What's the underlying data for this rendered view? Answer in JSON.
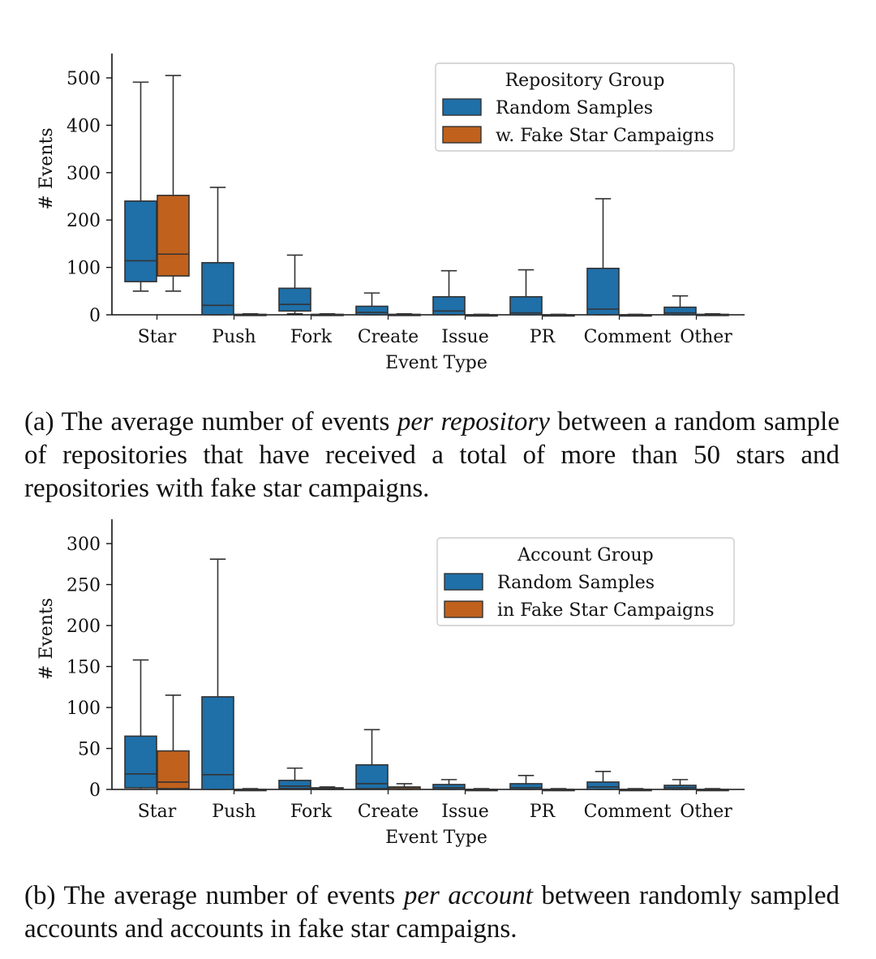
{
  "chart_data": [
    {
      "type": "box",
      "xlabel": "Event Type",
      "ylabel": "# Events",
      "ylim": [
        0,
        520
      ],
      "yticks": [
        0,
        100,
        200,
        300,
        400,
        500
      ],
      "categories": [
        "Star",
        "Push",
        "Fork",
        "Create",
        "Issue",
        "PR",
        "Comment",
        "Other"
      ],
      "legend": {
        "title": "Repository Group",
        "placement": "top-right",
        "entries": [
          "Random Samples",
          "w. Fake Star Campaigns"
        ]
      },
      "series": [
        {
          "name": "Random Samples",
          "color": "#1f6fa8",
          "boxes": [
            {
              "low": 50,
              "q1": 70,
              "median": 114,
              "q3": 240,
              "high": 491
            },
            {
              "low": 0,
              "q1": 0,
              "median": 20,
              "q3": 110,
              "high": 269
            },
            {
              "low": 2,
              "q1": 8,
              "median": 22,
              "q3": 56,
              "high": 126
            },
            {
              "low": 0,
              "q1": 0,
              "median": 5,
              "q3": 18,
              "high": 46
            },
            {
              "low": 0,
              "q1": 0,
              "median": 8,
              "q3": 38,
              "high": 93
            },
            {
              "low": 0,
              "q1": 0,
              "median": 4,
              "q3": 38,
              "high": 95
            },
            {
              "low": 0,
              "q1": 0,
              "median": 12,
              "q3": 98,
              "high": 245
            },
            {
              "low": 0,
              "q1": 0,
              "median": 4,
              "q3": 16,
              "high": 40
            }
          ]
        },
        {
          "name": "w. Fake Star Campaigns",
          "color": "#c0611d",
          "boxes": [
            {
              "low": 50,
              "q1": 82,
              "median": 128,
              "q3": 252,
              "high": 505
            },
            {
              "low": 0,
              "q1": 0,
              "median": 0,
              "q3": 1,
              "high": 2
            },
            {
              "low": 0,
              "q1": 0,
              "median": 0,
              "q3": 1,
              "high": 2
            },
            {
              "low": 0,
              "q1": 0,
              "median": 0,
              "q3": 1,
              "high": 2
            },
            {
              "low": 0,
              "q1": 0,
              "median": 0,
              "q3": 0,
              "high": 1
            },
            {
              "low": 0,
              "q1": 0,
              "median": 0,
              "q3": 0,
              "high": 1
            },
            {
              "low": 0,
              "q1": 0,
              "median": 0,
              "q3": 0,
              "high": 1
            },
            {
              "low": 0,
              "q1": 0,
              "median": 0,
              "q3": 1,
              "high": 2
            }
          ]
        }
      ]
    },
    {
      "type": "box",
      "xlabel": "Event Type",
      "ylabel": "# Events",
      "ylim": [
        0,
        300
      ],
      "yticks": [
        0,
        50,
        100,
        150,
        200,
        250,
        300
      ],
      "categories": [
        "Star",
        "Push",
        "Fork",
        "Create",
        "Issue",
        "PR",
        "Comment",
        "Other"
      ],
      "legend": {
        "title": "Account Group",
        "placement": "top-right",
        "entries": [
          "Random Samples",
          "in Fake Star Campaigns"
        ]
      },
      "series": [
        {
          "name": "Random Samples",
          "color": "#1f6fa8",
          "boxes": [
            {
              "low": 0,
              "q1": 2,
              "median": 19,
              "q3": 65,
              "high": 158
            },
            {
              "low": 0,
              "q1": 0,
              "median": 18,
              "q3": 113,
              "high": 281
            },
            {
              "low": 0,
              "q1": 1,
              "median": 4,
              "q3": 11,
              "high": 26
            },
            {
              "low": 0,
              "q1": 1,
              "median": 7,
              "q3": 30,
              "high": 73
            },
            {
              "low": 0,
              "q1": 0,
              "median": 2,
              "q3": 6,
              "high": 12
            },
            {
              "low": 0,
              "q1": 0,
              "median": 2,
              "q3": 7,
              "high": 17
            },
            {
              "low": 0,
              "q1": 0,
              "median": 3,
              "q3": 9,
              "high": 22
            },
            {
              "low": 0,
              "q1": 0,
              "median": 2,
              "q3": 5,
              "high": 12
            }
          ]
        },
        {
          "name": "in Fake Star Campaigns",
          "color": "#c0611d",
          "boxes": [
            {
              "low": 0,
              "q1": 1,
              "median": 9,
              "q3": 47,
              "high": 115
            },
            {
              "low": 0,
              "q1": 0,
              "median": 0,
              "q3": 0,
              "high": 1
            },
            {
              "low": 0,
              "q1": 0,
              "median": 1,
              "q3": 2,
              "high": 3
            },
            {
              "low": 0,
              "q1": 0,
              "median": 2,
              "q3": 3,
              "high": 7
            },
            {
              "low": 0,
              "q1": 0,
              "median": 0,
              "q3": 0,
              "high": 1
            },
            {
              "low": 0,
              "q1": 0,
              "median": 0,
              "q3": 0,
              "high": 1
            },
            {
              "low": 0,
              "q1": 0,
              "median": 0,
              "q3": 0,
              "high": 1
            },
            {
              "low": 0,
              "q1": 0,
              "median": 0,
              "q3": 0,
              "high": 1
            }
          ]
        }
      ]
    }
  ],
  "captions": {
    "a": {
      "prefix": "(a) The average number of events ",
      "emphasis": "per repository",
      "suffix": " between a random sample of repositories that have received a total of more than 50 stars and repositories with fake star campaigns."
    },
    "b": {
      "prefix": "(b) The average number of events ",
      "emphasis": "per account",
      "suffix": " between randomly sampled accounts and accounts in fake star campaigns."
    }
  }
}
